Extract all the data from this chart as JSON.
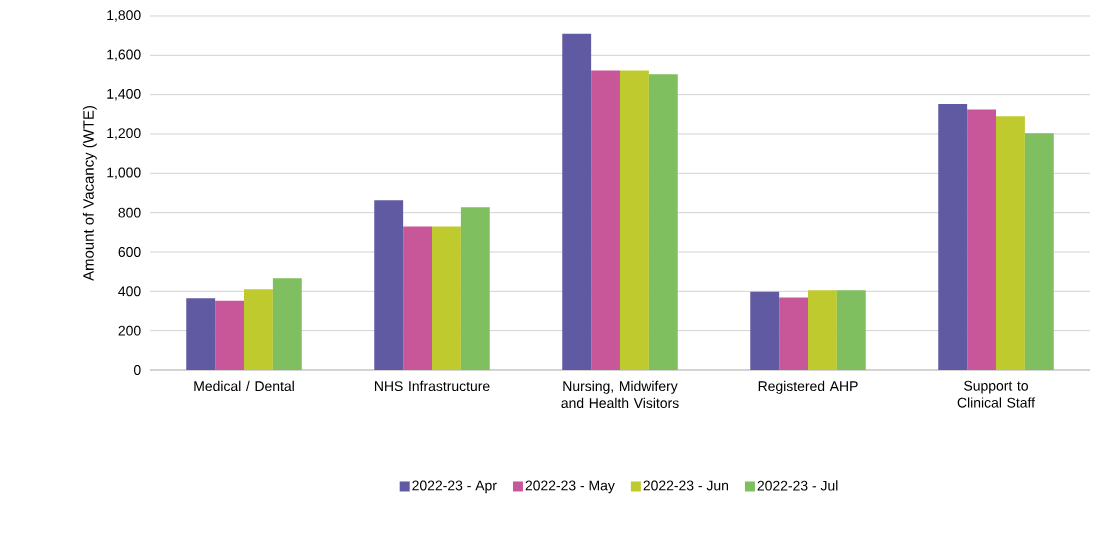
{
  "chart_data": {
    "type": "bar",
    "ylabel": "Amount of Vacancy (WTE)",
    "categories": [
      "Medical / Dental",
      "NHS Infrastructure",
      "Nursing, Midwifery and Health Visitors",
      "Registered AHP",
      "Support to Clinical Staff"
    ],
    "series": [
      {
        "name": "2022-23 - Apr",
        "color": "#5f5aa2",
        "values": [
          365,
          863,
          1710,
          398,
          1353
        ]
      },
      {
        "name": "2022-23 - May",
        "color": "#c8579a",
        "values": [
          352,
          729,
          1523,
          369,
          1324
        ]
      },
      {
        "name": "2022-23 - Jun",
        "color": "#bfca2e",
        "values": [
          410,
          729,
          1523,
          405,
          1290
        ]
      },
      {
        "name": "2022-23 - Jul",
        "color": "#7fbf5f",
        "values": [
          466,
          828,
          1504,
          405,
          1204
        ]
      }
    ],
    "ylim": [
      0,
      1800
    ],
    "yticks": [
      {
        "value": 0,
        "label": "0"
      },
      {
        "value": 200,
        "label": "200"
      },
      {
        "value": 400,
        "label": "400"
      },
      {
        "value": 600,
        "label": "600"
      },
      {
        "value": 800,
        "label": "800"
      },
      {
        "value": 1000,
        "label": "1,000"
      },
      {
        "value": 1200,
        "label": "1,200"
      },
      {
        "value": 1400,
        "label": "1,400"
      },
      {
        "value": 1600,
        "label": "1,600"
      },
      {
        "value": 1800,
        "label": "1,800"
      }
    ],
    "grid": "y",
    "legend": "bottom"
  }
}
